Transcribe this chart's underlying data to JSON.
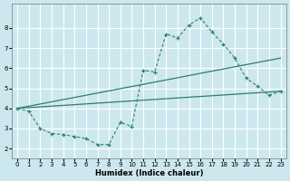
{
  "xlabel": "Humidex (Indice chaleur)",
  "bg_color": "#cce8ee",
  "grid_color": "#ffffff",
  "line_color": "#2e7d6e",
  "xlim": [
    -0.5,
    23.5
  ],
  "ylim": [
    1.5,
    9.2
  ],
  "xticks": [
    0,
    1,
    2,
    3,
    4,
    5,
    6,
    7,
    8,
    9,
    10,
    11,
    12,
    13,
    14,
    15,
    16,
    17,
    18,
    19,
    20,
    21,
    22,
    23
  ],
  "yticks": [
    2,
    3,
    4,
    5,
    6,
    7,
    8
  ],
  "line1_x": [
    0,
    1,
    2,
    3,
    4,
    5,
    6,
    7,
    8,
    9,
    10,
    11,
    12,
    13,
    14,
    15,
    16,
    17,
    18,
    19,
    20,
    21,
    22,
    23
  ],
  "line1_y": [
    4.0,
    3.85,
    3.0,
    2.75,
    2.7,
    2.6,
    2.5,
    2.2,
    2.2,
    3.3,
    3.1,
    5.9,
    5.8,
    7.7,
    7.5,
    8.15,
    8.5,
    7.8,
    7.2,
    6.5,
    5.5,
    5.1,
    4.65,
    4.85
  ],
  "line2_x": [
    0,
    23
  ],
  "line2_y": [
    4.0,
    6.5
  ],
  "line3_x": [
    0,
    23
  ],
  "line3_y": [
    4.0,
    4.85
  ]
}
